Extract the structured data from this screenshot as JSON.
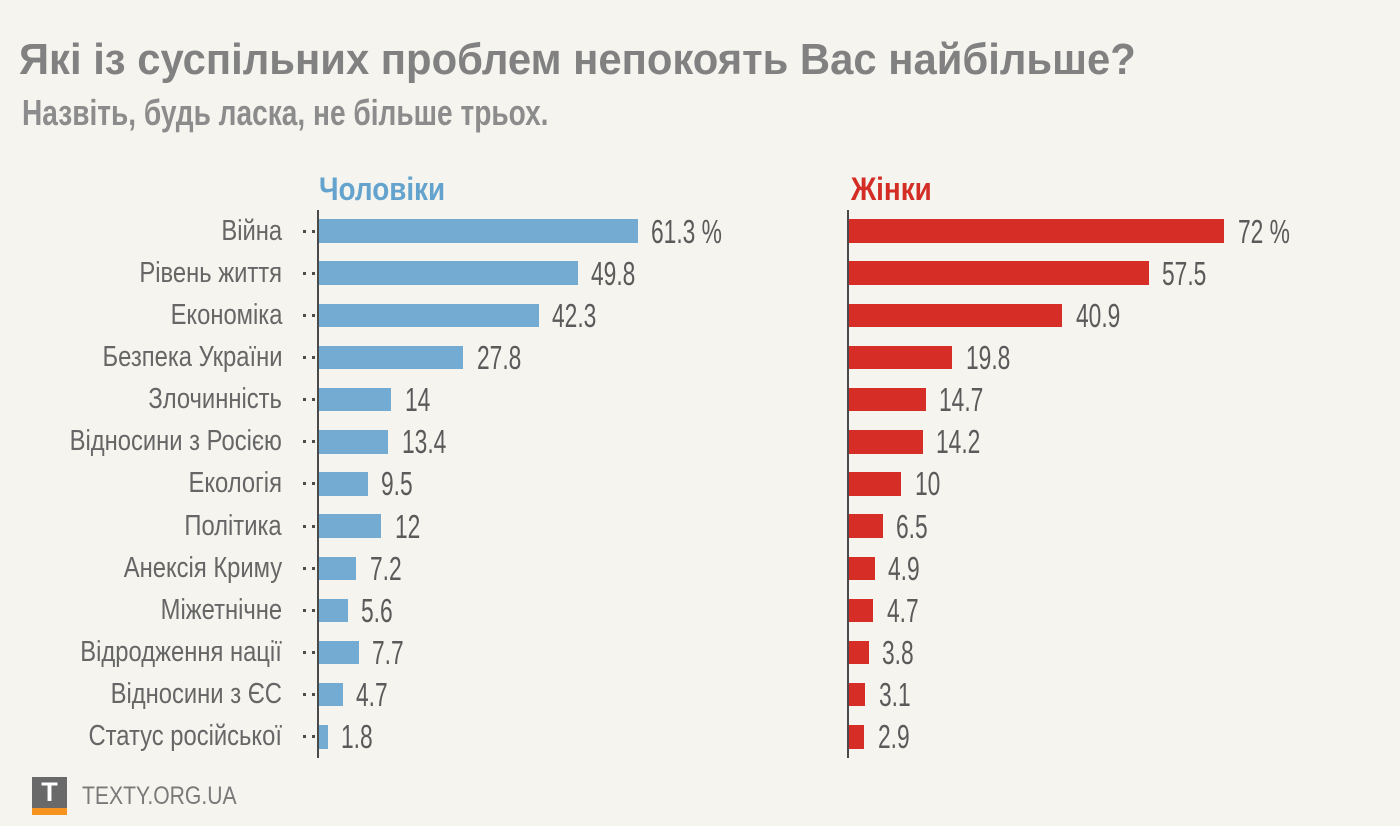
{
  "title": "Які із суспільних проблем непокоять Вас найбільше?",
  "subtitle": "Назвіть, будь ласка, не більше трьох.",
  "footer": {
    "brand": "TEXTY.ORG.UA",
    "logo_letter": "T"
  },
  "colors": {
    "background": "#f5f4ef",
    "men_bar": "#73abd2",
    "men_header": "#64a3cd",
    "women_bar": "#d62e27",
    "women_header": "#d32d26",
    "axis": "#4a4a4a",
    "title_text": "#818181",
    "subtitle_text": "#8c8c8c",
    "category_text": "#666666",
    "value_text": "#5a5a5a",
    "logo_square": "#696969",
    "logo_underline": "#f6921e"
  },
  "chart_data": {
    "type": "bar",
    "orientation": "horizontal",
    "unit": "%",
    "xlim": [
      0,
      75
    ],
    "grid": "off",
    "legend_position": "column-headers",
    "categories": [
      "Війна",
      "Рівень життя",
      "Економіка",
      "Безпека України",
      "Злочинність",
      "Відносини з Росією",
      "Екологія",
      "Політика",
      "Анексія Криму",
      "Міжетнічне",
      "Відродження нації",
      "Відносини з ЄС",
      "Статус російської"
    ],
    "series": [
      {
        "name": "Чоловіки",
        "values": [
          61.3,
          49.8,
          42.3,
          27.8,
          14,
          13.4,
          9.5,
          12,
          7.2,
          5.6,
          7.7,
          4.7,
          1.8
        ],
        "labels": [
          "61.3 %",
          "49.8",
          "42.3",
          "27.8",
          "14",
          "13.4",
          "9.5",
          "12",
          "7.2",
          "5.6",
          "7.7",
          "4.7",
          "1.8"
        ]
      },
      {
        "name": "Жінки",
        "values": [
          72,
          57.5,
          40.9,
          19.8,
          14.7,
          14.2,
          10,
          6.5,
          4.9,
          4.7,
          3.8,
          3.1,
          2.9
        ],
        "labels": [
          "72 %",
          "57.5",
          "40.9",
          "19.8",
          "14.7",
          "14.2",
          "10",
          "6.5",
          "4.9",
          "4.7",
          "3.8",
          "3.1",
          "2.9"
        ]
      }
    ]
  }
}
